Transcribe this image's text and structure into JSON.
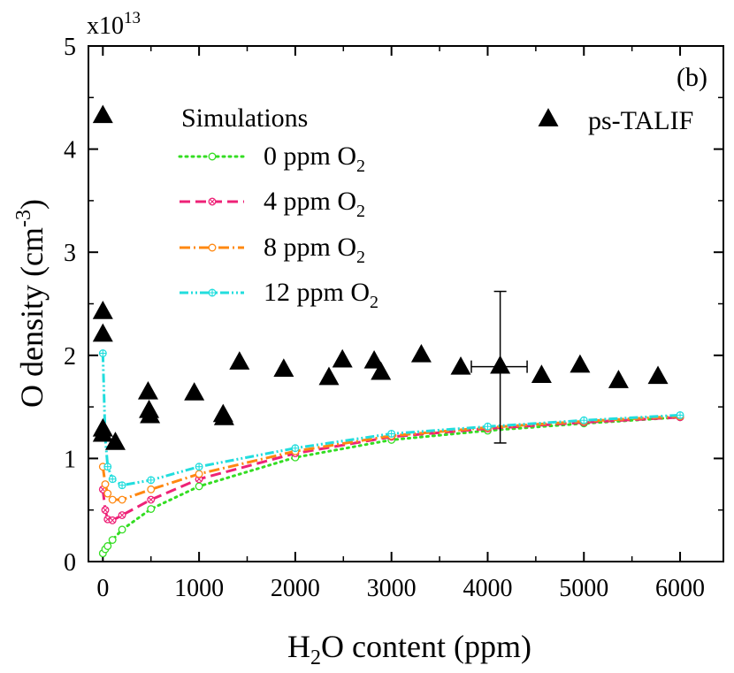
{
  "chart_data": {
    "type": "scatter",
    "panel_label": "(b)",
    "xlabel": "H",
    "xlabel_sub": "2",
    "xlabel_rest": "O content (ppm)",
    "ylabel": "O density (cm",
    "ylabel_sup": "-3",
    "ylabel_close": ")",
    "y_multiplier_base": "x10",
    "y_multiplier_exp": "13",
    "xlim": [
      -150,
      6450
    ],
    "ylim": [
      0,
      5
    ],
    "x_ticks": [
      0,
      1000,
      2000,
      3000,
      4000,
      5000,
      6000
    ],
    "x_tick_labels": [
      "0",
      "1000",
      "2000",
      "3000",
      "4000",
      "5000",
      "6000"
    ],
    "y_ticks": [
      0,
      1,
      2,
      3,
      4,
      5
    ],
    "y_tick_labels": [
      "0",
      "1",
      "2",
      "3",
      "4",
      "5"
    ],
    "x_minor_step": 500,
    "y_minor_step": 0.5,
    "legend_title": "Simulations",
    "simulations": [
      {
        "name": "0 ppm O",
        "sub": "2",
        "color": "#33dd22",
        "dash": "2,5",
        "marker": "circle",
        "x": [
          0,
          25,
          50,
          100,
          200,
          500,
          1000,
          2000,
          3000,
          4000,
          5000,
          6000
        ],
        "y": [
          0.08,
          0.12,
          0.15,
          0.21,
          0.31,
          0.51,
          0.73,
          1.01,
          1.18,
          1.27,
          1.34,
          1.4
        ]
      },
      {
        "name": "4 ppm O",
        "sub": "2",
        "color": "#ee2277",
        "dash": "12,6",
        "marker": "circle-x",
        "x": [
          0,
          25,
          50,
          100,
          200,
          500,
          1000,
          2000,
          3000,
          4000,
          5000,
          6000
        ],
        "y": [
          0.7,
          0.5,
          0.41,
          0.4,
          0.45,
          0.6,
          0.8,
          1.05,
          1.21,
          1.29,
          1.35,
          1.4
        ]
      },
      {
        "name": "8 ppm O",
        "sub": "2",
        "color": "#ff8811",
        "dash": "12,4,2,4",
        "marker": "circle",
        "x": [
          0,
          25,
          50,
          100,
          200,
          500,
          1000,
          2000,
          3000,
          4000,
          5000,
          6000
        ],
        "y": [
          0.92,
          0.75,
          0.66,
          0.6,
          0.6,
          0.7,
          0.85,
          1.07,
          1.22,
          1.3,
          1.36,
          1.41
        ]
      },
      {
        "name": "12 ppm O",
        "sub": "2",
        "color": "#22dddd",
        "dash": "10,3,2,3,2,3",
        "marker": "circle-plus",
        "x": [
          0,
          25,
          50,
          100,
          200,
          500,
          1000,
          2000,
          3000,
          4000,
          5000,
          6000
        ],
        "y": [
          2.02,
          1.2,
          0.92,
          0.8,
          0.74,
          0.79,
          0.92,
          1.1,
          1.24,
          1.31,
          1.37,
          1.42
        ]
      }
    ],
    "experiment": {
      "name": "ps-TALIF",
      "marker": "triangle",
      "color": "#000000",
      "x": [
        0,
        0,
        0,
        0,
        0,
        130,
        470,
        480,
        490,
        950,
        1250,
        1260,
        1420,
        1880,
        2350,
        2490,
        2820,
        2890,
        3310,
        3720,
        4130,
        4560,
        4960,
        5360,
        5770
      ],
      "y": [
        4.32,
        2.42,
        2.2,
        1.28,
        1.23,
        1.15,
        1.64,
        1.46,
        1.41,
        1.63,
        1.42,
        1.39,
        1.93,
        1.86,
        1.78,
        1.95,
        1.94,
        1.83,
        2.0,
        1.88,
        1.89,
        1.8,
        1.9,
        1.75,
        1.79
      ],
      "error_bar": {
        "x": 4130,
        "y": 1.89,
        "y_err": [
          0.74,
          0.73
        ],
        "x_err": [
          300,
          280
        ]
      }
    }
  }
}
